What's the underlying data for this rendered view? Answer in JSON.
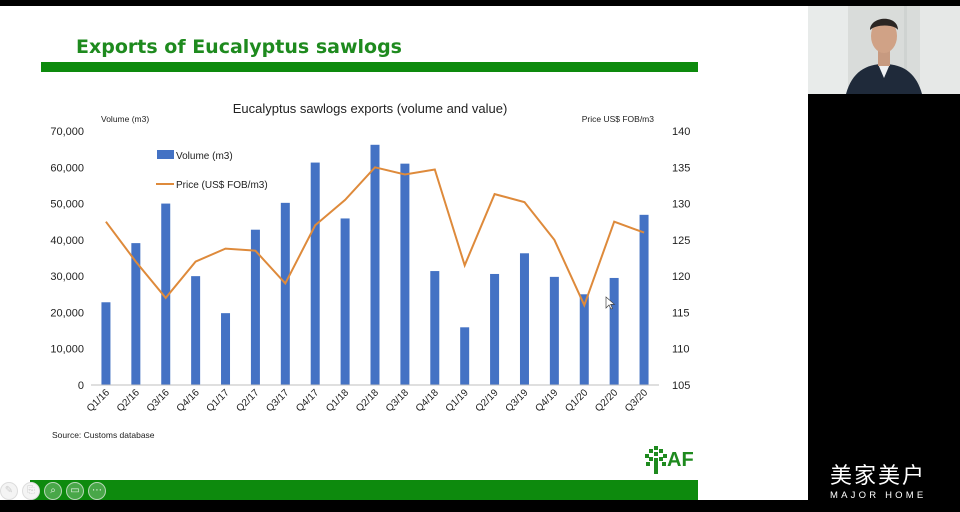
{
  "slide": {
    "title": "Exports of Eucalyptus sawlogs",
    "source": "Source: Customs database",
    "logo_text": "AF"
  },
  "colors": {
    "brand_green": "#1e8a1e",
    "bar_blue": "#4472c4",
    "line_orange": "#de8a3b"
  },
  "toolbar": {
    "icons": [
      "annotate-icon",
      "copy-icon",
      "search-icon",
      "captions-icon",
      "more-icon"
    ]
  },
  "brand": {
    "cn": "美家美户",
    "en": "MAJOR HOME"
  },
  "chart_data": {
    "type": "bar",
    "title": "Eucalyptus sawlogs exports (volume and value)",
    "ylabel": "Volume (m3)",
    "y2label": "Price US$ FOB/m3",
    "categories": [
      "Q1/16",
      "Q2/16",
      "Q3/16",
      "Q4/16",
      "Q1/17",
      "Q2/17",
      "Q3/17",
      "Q4/17",
      "Q1/18",
      "Q2/18",
      "Q3/18",
      "Q4/18",
      "Q1/19",
      "Q2/19",
      "Q3/19",
      "Q4/19",
      "Q1/20",
      "Q2/20",
      "Q3/20"
    ],
    "ylim": [
      0,
      70000
    ],
    "y_ticks": [
      "0",
      "10,000",
      "20,000",
      "30,000",
      "40,000",
      "50,000",
      "60,000",
      "70,000"
    ],
    "y2lim": [
      105,
      140
    ],
    "y2_ticks": [
      "105",
      "110",
      "115",
      "120",
      "125",
      "130",
      "135",
      "140"
    ],
    "series": [
      {
        "name": "Volume (m3)",
        "type": "bar",
        "axis": "left",
        "values": [
          22800,
          39100,
          50000,
          30000,
          19800,
          42800,
          50200,
          61300,
          45900,
          66200,
          61000,
          31400,
          15900,
          30600,
          36300,
          29800,
          25000,
          29500,
          46900
        ]
      },
      {
        "name": "Price (US$ FOB/m3)",
        "type": "line",
        "axis": "right",
        "values": [
          127.5,
          122.0,
          117.0,
          122.0,
          123.8,
          123.5,
          119.0,
          127.0,
          130.5,
          135.0,
          134.0,
          134.7,
          121.5,
          131.3,
          130.2,
          125.0,
          116.0,
          127.5,
          126.0
        ]
      }
    ],
    "grid": false,
    "legend": "top-left"
  }
}
